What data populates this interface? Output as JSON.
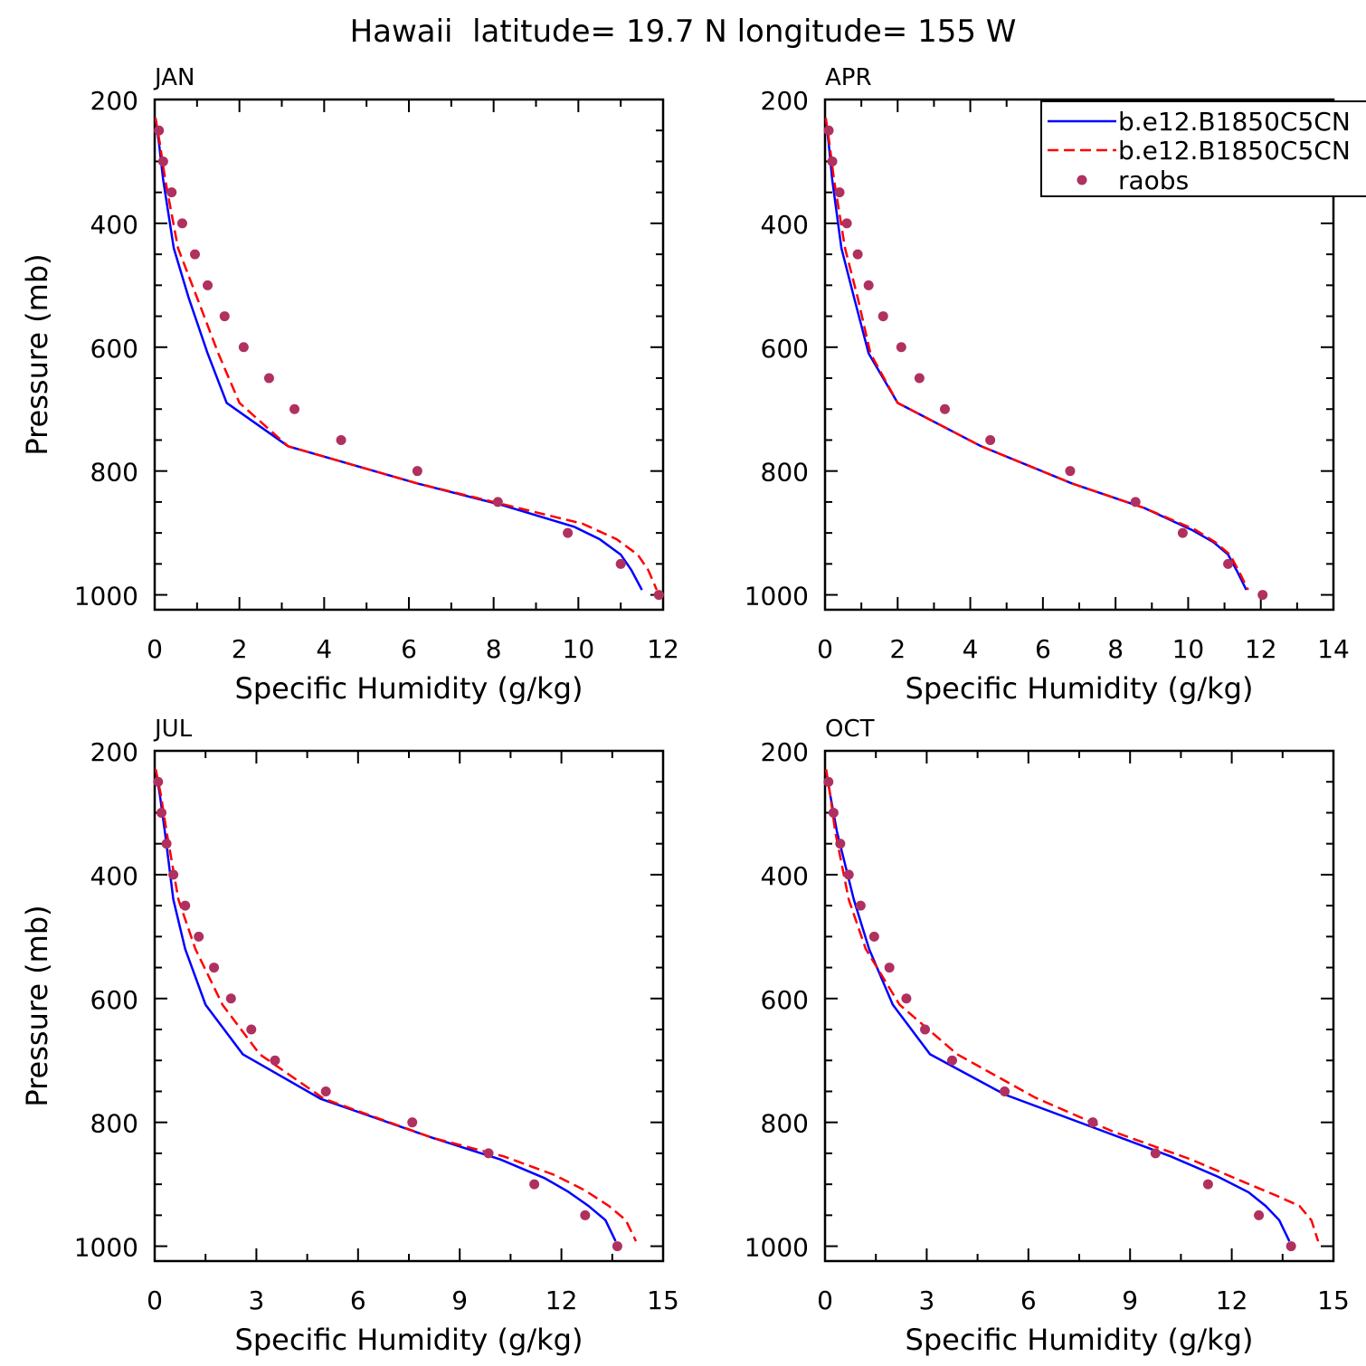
{
  "title": "Hawaii  latitude= 19.7 N longitude= 155 W",
  "colors": {
    "model1": "#0000ff",
    "model2": "#ff0000",
    "raobs": "#b03060",
    "axis": "#000000"
  },
  "legend": {
    "placement": "top-right of APR panel",
    "entries": [
      {
        "label": "b.e12.B1850C5CN",
        "style": "solid",
        "color": "#0000ff"
      },
      {
        "label": "b.e12.B1850C5CN",
        "style": "dashed",
        "color": "#ff0000"
      },
      {
        "label": "raobs",
        "style": "dot",
        "color": "#b03060"
      }
    ]
  },
  "chart_data": [
    {
      "type": "line",
      "month": "JAN",
      "xlabel": "Specific Humidity (g/kg)",
      "ylabel": "Pressure (mb)",
      "xlim": [
        0,
        12
      ],
      "ylim": [
        200,
        1000
      ],
      "y_inverted": true,
      "xticks": [
        0,
        2,
        4,
        6,
        8,
        10,
        12
      ],
      "yticks": [
        200,
        400,
        600,
        800,
        1000
      ],
      "series": [
        {
          "name": "b.e12.B1850C5CN",
          "style": "solid",
          "points": [
            [
              0.02,
              230
            ],
            [
              0.1,
              270
            ],
            [
              0.2,
              330
            ],
            [
              0.45,
              440
            ],
            [
              0.8,
              520
            ],
            [
              1.25,
              610
            ],
            [
              1.7,
              690
            ],
            [
              3.15,
              760
            ],
            [
              6.2,
              820
            ],
            [
              8.2,
              855
            ],
            [
              9.9,
              890
            ],
            [
              10.5,
              910
            ],
            [
              11.0,
              935
            ],
            [
              11.25,
              960
            ],
            [
              11.5,
              992
            ]
          ]
        },
        {
          "name": "b.e12.B1850C5CN",
          "style": "dashed",
          "points": [
            [
              0.02,
              230
            ],
            [
              0.12,
              270
            ],
            [
              0.25,
              330
            ],
            [
              0.55,
              440
            ],
            [
              1.0,
              520
            ],
            [
              1.5,
              610
            ],
            [
              2.0,
              690
            ],
            [
              3.15,
              760
            ],
            [
              6.2,
              820
            ],
            [
              8.3,
              855
            ],
            [
              10.1,
              885
            ],
            [
              10.9,
              910
            ],
            [
              11.4,
              935
            ],
            [
              11.65,
              960
            ],
            [
              11.85,
              992
            ]
          ]
        },
        {
          "name": "raobs",
          "style": "dot",
          "points": [
            [
              0.1,
              250
            ],
            [
              0.2,
              300
            ],
            [
              0.4,
              350
            ],
            [
              0.65,
              400
            ],
            [
              0.95,
              450
            ],
            [
              1.25,
              500
            ],
            [
              1.65,
              550
            ],
            [
              2.1,
              600
            ],
            [
              2.7,
              650
            ],
            [
              3.3,
              700
            ],
            [
              4.4,
              750
            ],
            [
              6.2,
              800
            ],
            [
              8.1,
              850
            ],
            [
              9.75,
              900
            ],
            [
              11.0,
              950
            ],
            [
              11.9,
              1000
            ]
          ]
        }
      ]
    },
    {
      "type": "line",
      "month": "APR",
      "xlabel": "Specific Humidity (g/kg)",
      "ylabel": "",
      "xlim": [
        0,
        14
      ],
      "ylim": [
        200,
        1000
      ],
      "y_inverted": true,
      "xticks": [
        0,
        2,
        4,
        6,
        8,
        10,
        12,
        14
      ],
      "yticks": [
        200,
        400,
        600,
        800,
        1000
      ],
      "series": [
        {
          "name": "b.e12.B1850C5CN",
          "style": "solid",
          "points": [
            [
              0.02,
              230
            ],
            [
              0.1,
              270
            ],
            [
              0.2,
              330
            ],
            [
              0.45,
              440
            ],
            [
              0.8,
              520
            ],
            [
              1.2,
              610
            ],
            [
              2.0,
              690
            ],
            [
              4.3,
              760
            ],
            [
              6.8,
              820
            ],
            [
              8.8,
              860
            ],
            [
              10.1,
              895
            ],
            [
              10.7,
              915
            ],
            [
              11.1,
              935
            ],
            [
              11.35,
              962
            ],
            [
              11.6,
              992
            ]
          ]
        },
        {
          "name": "b.e12.B1850C5CN",
          "style": "dashed",
          "points": [
            [
              0.02,
              230
            ],
            [
              0.12,
              270
            ],
            [
              0.25,
              330
            ],
            [
              0.55,
              440
            ],
            [
              0.9,
              520
            ],
            [
              1.25,
              610
            ],
            [
              2.0,
              690
            ],
            [
              4.3,
              760
            ],
            [
              6.8,
              820
            ],
            [
              8.8,
              860
            ],
            [
              10.2,
              895
            ],
            [
              10.75,
              915
            ],
            [
              11.15,
              935
            ],
            [
              11.4,
              962
            ],
            [
              11.65,
              992
            ]
          ]
        },
        {
          "name": "raobs",
          "style": "dot",
          "points": [
            [
              0.1,
              250
            ],
            [
              0.2,
              300
            ],
            [
              0.4,
              350
            ],
            [
              0.6,
              400
            ],
            [
              0.9,
              450
            ],
            [
              1.2,
              500
            ],
            [
              1.6,
              550
            ],
            [
              2.1,
              600
            ],
            [
              2.6,
              650
            ],
            [
              3.3,
              700
            ],
            [
              4.55,
              750
            ],
            [
              6.75,
              800
            ],
            [
              8.55,
              850
            ],
            [
              9.85,
              900
            ],
            [
              11.1,
              950
            ],
            [
              12.05,
              1000
            ]
          ]
        }
      ]
    },
    {
      "type": "line",
      "month": "JUL",
      "xlabel": "Specific Humidity (g/kg)",
      "ylabel": "Pressure (mb)",
      "xlim": [
        0,
        15
      ],
      "ylim": [
        200,
        1000
      ],
      "y_inverted": true,
      "xticks": [
        0,
        3,
        6,
        9,
        12,
        15
      ],
      "yticks": [
        200,
        400,
        600,
        800,
        1000
      ],
      "series": [
        {
          "name": "b.e12.B1850C5CN",
          "style": "solid",
          "points": [
            [
              0.03,
              230
            ],
            [
              0.15,
              270
            ],
            [
              0.3,
              330
            ],
            [
              0.55,
              440
            ],
            [
              0.9,
              520
            ],
            [
              1.5,
              610
            ],
            [
              2.6,
              690
            ],
            [
              4.9,
              762
            ],
            [
              8.2,
              825
            ],
            [
              10.2,
              860
            ],
            [
              11.5,
              890
            ],
            [
              12.2,
              912
            ],
            [
              12.8,
              935
            ],
            [
              13.3,
              958
            ],
            [
              13.6,
              992
            ]
          ]
        },
        {
          "name": "b.e12.B1850C5CN",
          "style": "dashed",
          "points": [
            [
              0.03,
              230
            ],
            [
              0.18,
              270
            ],
            [
              0.35,
              330
            ],
            [
              0.7,
              440
            ],
            [
              1.2,
              520
            ],
            [
              2.0,
              610
            ],
            [
              3.1,
              690
            ],
            [
              5.0,
              762
            ],
            [
              8.2,
              825
            ],
            [
              10.3,
              855
            ],
            [
              11.8,
              885
            ],
            [
              12.7,
              910
            ],
            [
              13.4,
              935
            ],
            [
              13.9,
              958
            ],
            [
              14.2,
              992
            ]
          ]
        },
        {
          "name": "raobs",
          "style": "dot",
          "points": [
            [
              0.1,
              250
            ],
            [
              0.2,
              300
            ],
            [
              0.35,
              350
            ],
            [
              0.55,
              400
            ],
            [
              0.9,
              450
            ],
            [
              1.3,
              500
            ],
            [
              1.75,
              550
            ],
            [
              2.25,
              600
            ],
            [
              2.85,
              650
            ],
            [
              3.55,
              700
            ],
            [
              5.05,
              750
            ],
            [
              7.6,
              800
            ],
            [
              9.85,
              850
            ],
            [
              11.2,
              900
            ],
            [
              12.7,
              950
            ],
            [
              13.65,
              1000
            ]
          ]
        }
      ]
    },
    {
      "type": "line",
      "month": "OCT",
      "xlabel": "Specific Humidity (g/kg)",
      "ylabel": "",
      "xlim": [
        0,
        15
      ],
      "ylim": [
        200,
        1000
      ],
      "y_inverted": true,
      "xticks": [
        0,
        3,
        6,
        9,
        12,
        15
      ],
      "yticks": [
        200,
        400,
        600,
        800,
        1000
      ],
      "series": [
        {
          "name": "b.e12.B1850C5CN",
          "style": "solid",
          "points": [
            [
              0.03,
              230
            ],
            [
              0.15,
              270
            ],
            [
              0.35,
              330
            ],
            [
              0.85,
              440
            ],
            [
              1.3,
              520
            ],
            [
              2.0,
              610
            ],
            [
              3.1,
              690
            ],
            [
              5.3,
              755
            ],
            [
              8.0,
              810
            ],
            [
              10.2,
              855
            ],
            [
              11.6,
              888
            ],
            [
              12.5,
              913
            ],
            [
              13.0,
              935
            ],
            [
              13.4,
              958
            ],
            [
              13.7,
              992
            ]
          ]
        },
        {
          "name": "b.e12.B1850C5CN",
          "style": "dashed",
          "points": [
            [
              0.03,
              230
            ],
            [
              0.15,
              270
            ],
            [
              0.3,
              330
            ],
            [
              0.7,
              440
            ],
            [
              1.2,
              520
            ],
            [
              2.2,
              610
            ],
            [
              3.9,
              690
            ],
            [
              6.2,
              760
            ],
            [
              8.5,
              815
            ],
            [
              10.8,
              860
            ],
            [
              12.3,
              895
            ],
            [
              13.3,
              918
            ],
            [
              14.0,
              935
            ],
            [
              14.35,
              958
            ],
            [
              14.55,
              992
            ]
          ]
        },
        {
          "name": "raobs",
          "style": "dot",
          "points": [
            [
              0.1,
              250
            ],
            [
              0.25,
              300
            ],
            [
              0.45,
              350
            ],
            [
              0.7,
              400
            ],
            [
              1.05,
              450
            ],
            [
              1.45,
              500
            ],
            [
              1.9,
              550
            ],
            [
              2.4,
              600
            ],
            [
              2.95,
              650
            ],
            [
              3.75,
              700
            ],
            [
              5.3,
              750
            ],
            [
              7.9,
              800
            ],
            [
              9.75,
              850
            ],
            [
              11.3,
              900
            ],
            [
              12.8,
              950
            ],
            [
              13.75,
              1000
            ]
          ]
        }
      ]
    }
  ]
}
